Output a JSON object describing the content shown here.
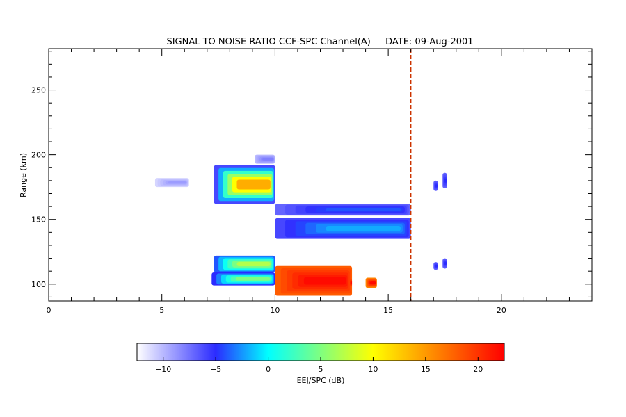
{
  "chart_data": {
    "type": "heatmap",
    "title": "SIGNAL TO NOISE RATIO CCF-SPC Channel(A) — DATE: 09-Aug-2001",
    "xlabel": "",
    "ylabel": "Range (km)",
    "xlim": [
      0,
      24
    ],
    "ylim": [
      87,
      282
    ],
    "x_ticks": [
      0,
      5,
      10,
      15,
      20
    ],
    "y_ticks": [
      100,
      150,
      200,
      250
    ],
    "colorbar": {
      "label": "EEJ/SPC (dB)",
      "range": [
        -12.5,
        22.5
      ],
      "ticks": [
        -10,
        -5,
        0,
        5,
        10,
        15,
        20
      ],
      "stops": [
        {
          "value": -12.5,
          "color": "#ffffff"
        },
        {
          "value": -5,
          "color": "#2b2bff"
        },
        {
          "value": 0,
          "color": "#00ffff"
        },
        {
          "value": 10,
          "color": "#ffff00"
        },
        {
          "value": 15,
          "color": "#ff9900"
        },
        {
          "value": 22.5,
          "color": "#ff0000"
        }
      ]
    },
    "marker_line": {
      "x": 16,
      "style": "dashed",
      "color": "#cc3300"
    },
    "layers": [
      {
        "t0": 7.3,
        "t1": 10.0,
        "r0": 162,
        "r1": 192,
        "snr_edge": -6,
        "snr_core": 14
      },
      {
        "t0": 9.1,
        "t1": 10.0,
        "r0": 193,
        "r1": 200,
        "snr_edge": -10,
        "snr_core": -8
      },
      {
        "t0": 4.7,
        "t1": 6.2,
        "r0": 175,
        "r1": 182,
        "snr_edge": -11,
        "snr_core": -9
      },
      {
        "t0": 7.3,
        "t1": 10.0,
        "r0": 109,
        "r1": 122,
        "snr_edge": -4,
        "snr_core": 7
      },
      {
        "t0": 7.2,
        "t1": 10.0,
        "r0": 99,
        "r1": 109,
        "snr_edge": -5,
        "snr_core": 5
      },
      {
        "t0": 10.0,
        "t1": 16.0,
        "r0": 153,
        "r1": 162,
        "snr_edge": -7,
        "snr_core": -4
      },
      {
        "t0": 10.0,
        "t1": 16.0,
        "r0": 135,
        "r1": 151,
        "snr_edge": -6,
        "snr_core": -2
      },
      {
        "t0": 10.0,
        "t1": 13.4,
        "r0": 91,
        "r1": 114,
        "snr_edge": 18,
        "snr_core": 22
      },
      {
        "t0": 13.3,
        "t1": 13.4,
        "r0": 98,
        "r1": 104,
        "snr_edge": 19,
        "snr_core": 22
      },
      {
        "t0": 14.0,
        "t1": 14.5,
        "r0": 97,
        "r1": 105,
        "snr_edge": 16,
        "snr_core": 22
      },
      {
        "t0": 17.0,
        "t1": 17.2,
        "r0": 172,
        "r1": 180,
        "snr_edge": -7,
        "snr_core": -5
      },
      {
        "t0": 17.4,
        "t1": 17.6,
        "r0": 174,
        "r1": 186,
        "snr_edge": -7,
        "snr_core": -5
      },
      {
        "t0": 17.0,
        "t1": 17.2,
        "r0": 111,
        "r1": 117,
        "snr_edge": -7,
        "snr_core": -5
      },
      {
        "t0": 17.4,
        "t1": 17.6,
        "r0": 112,
        "r1": 120,
        "snr_edge": -7,
        "snr_core": -5
      }
    ]
  }
}
